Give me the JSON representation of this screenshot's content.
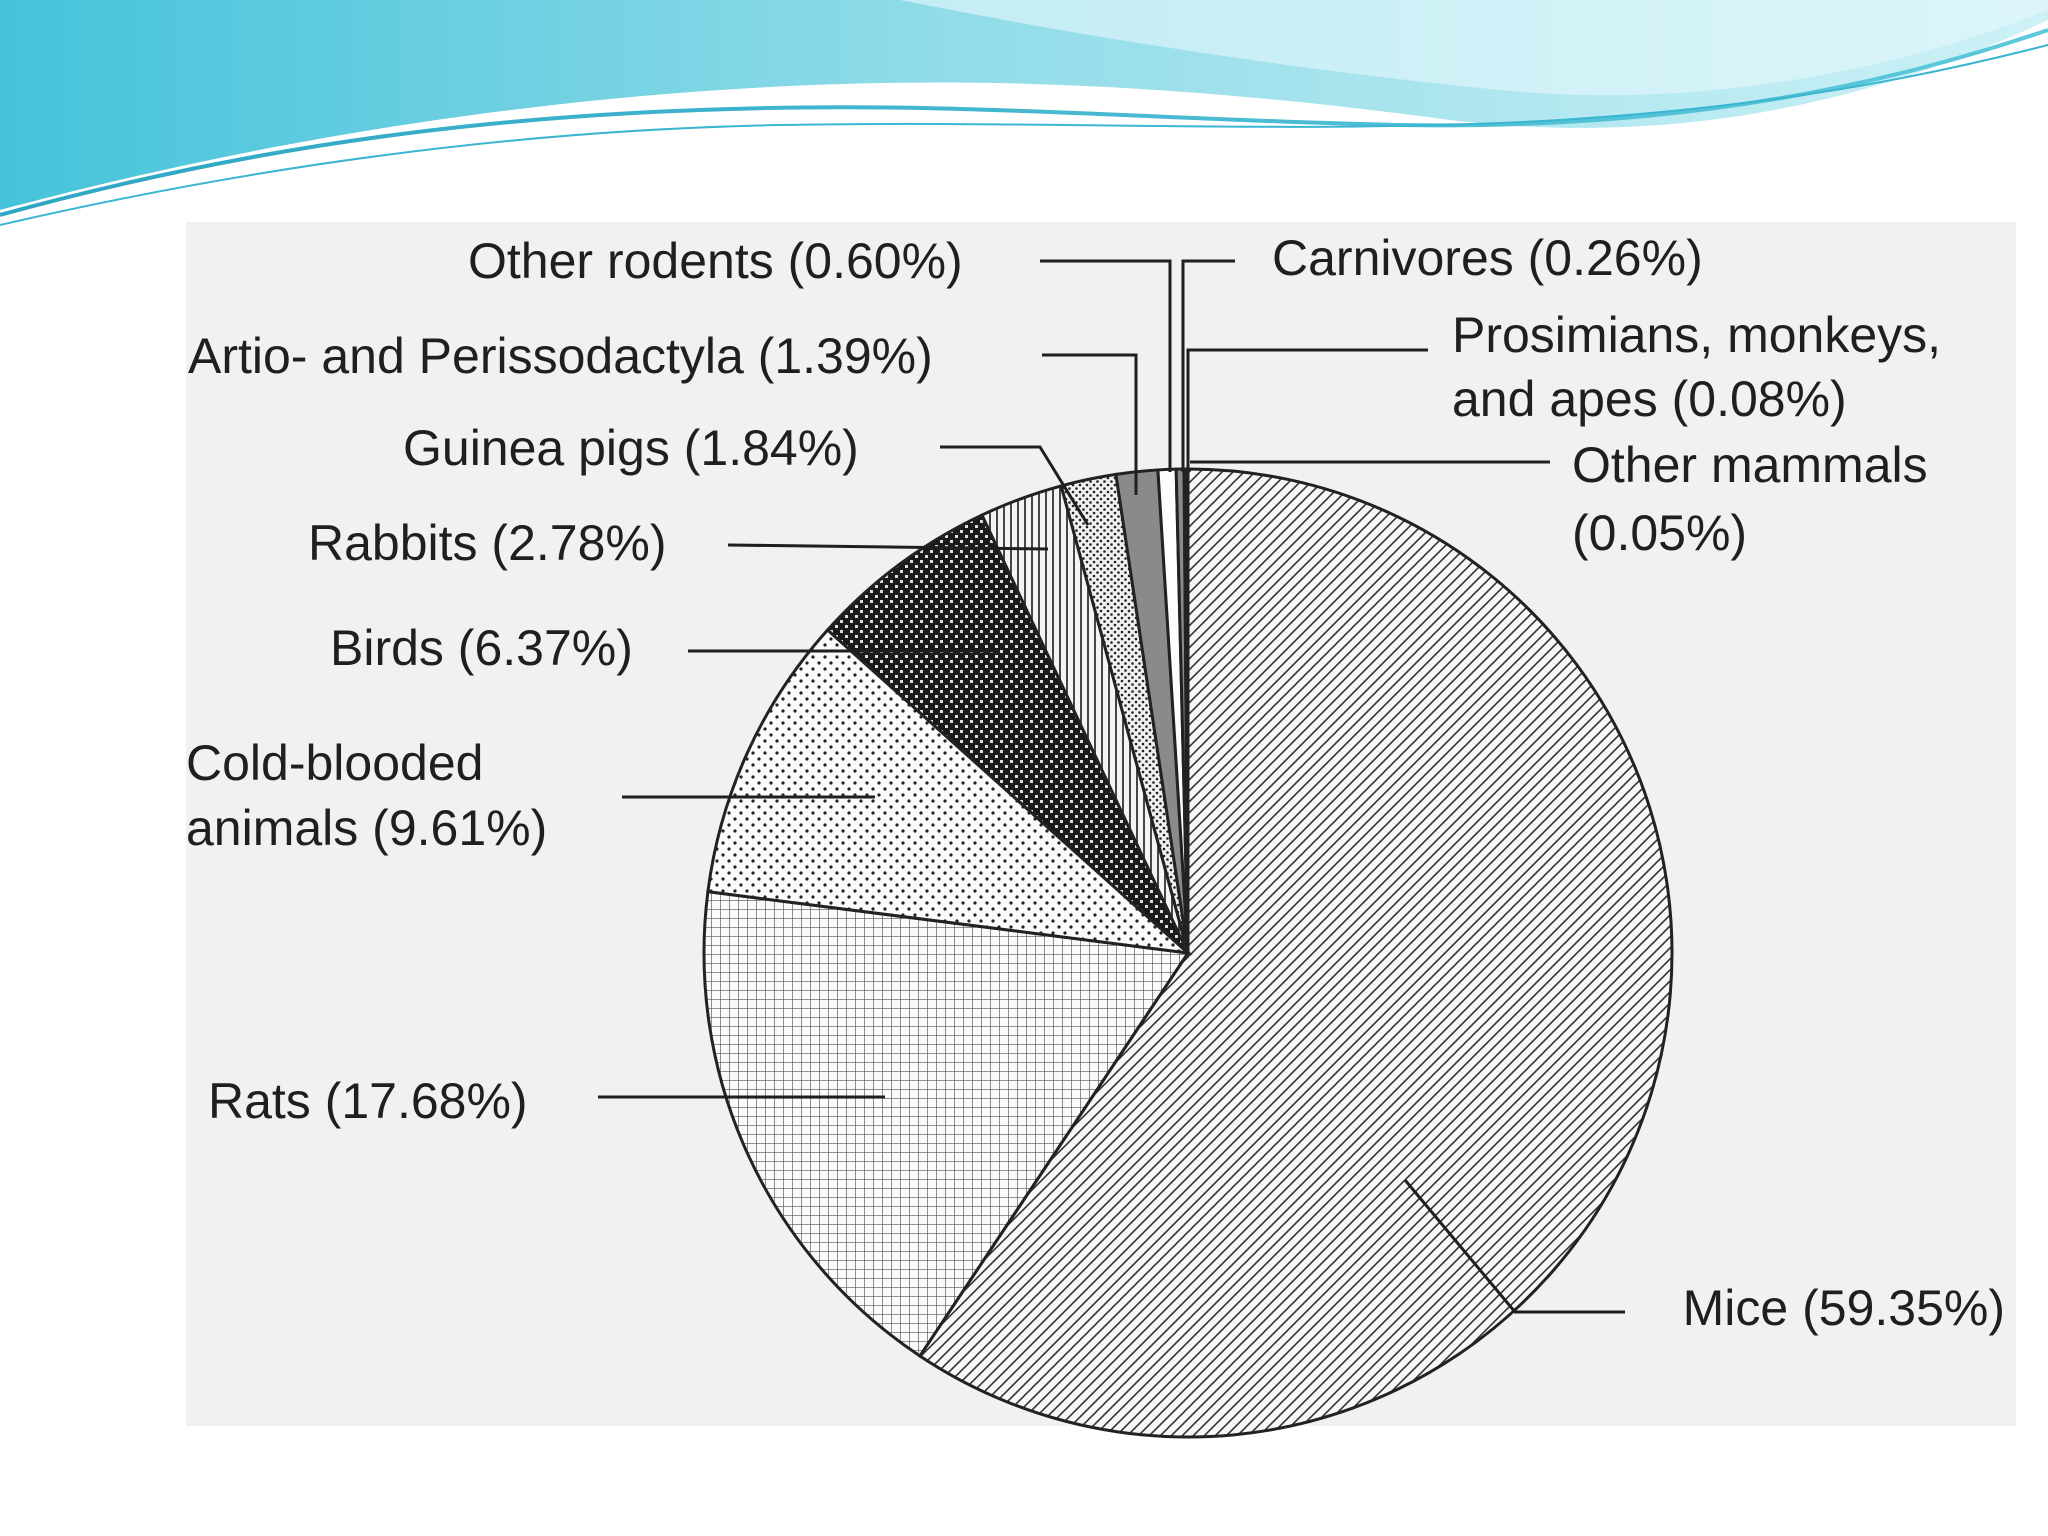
{
  "chart_data": {
    "type": "pie",
    "slices": [
      {
        "name": "Mice",
        "label": "Mice (59.35%)",
        "value": 59.35,
        "pattern": "diag-hatch"
      },
      {
        "name": "Rats",
        "label": "Rats (17.68%)",
        "value": 17.68,
        "pattern": "grid"
      },
      {
        "name": "Cold-blooded animals",
        "label": [
          "Cold-blooded",
          "animals (9.61%)"
        ],
        "value": 9.61,
        "pattern": "sparse-dots"
      },
      {
        "name": "Birds",
        "label": "Birds (6.37%)",
        "value": 6.37,
        "pattern": "dark-checker"
      },
      {
        "name": "Rabbits",
        "label": "Rabbits (2.78%)",
        "value": 2.78,
        "pattern": "vertical-lines"
      },
      {
        "name": "Guinea pigs",
        "label": "Guinea pigs (1.84%)",
        "value": 1.84,
        "pattern": "dense-dots"
      },
      {
        "name": "Artio- and Perissodactyla",
        "label": "Artio- and Perissodactyla (1.39%)",
        "value": 1.39,
        "pattern": "gray"
      },
      {
        "name": "Other rodents",
        "label": "Other rodents (0.60%)",
        "value": 0.6,
        "pattern": "white"
      },
      {
        "name": "Carnivores",
        "label": "Carnivores (0.26%)",
        "value": 0.26,
        "pattern": "gray"
      },
      {
        "name": "Prosimians, monkeys, and apes",
        "label": [
          "Prosimians, monkeys,",
          "and apes (0.08%)"
        ],
        "value": 0.08,
        "pattern": "white"
      },
      {
        "name": "Other mammals",
        "label": [
          "Other mammals",
          "(0.05%)"
        ],
        "value": 0.05,
        "pattern": "black"
      }
    ],
    "start": "top, clockwise",
    "legend": "none"
  },
  "colors": {
    "wave_light": "#b6ecf3",
    "wave_mid": "#5cc9dc",
    "wave_dark": "#2a9fc0",
    "chart_bg": "#f1f1f1",
    "ink": "#1f1f1f"
  }
}
